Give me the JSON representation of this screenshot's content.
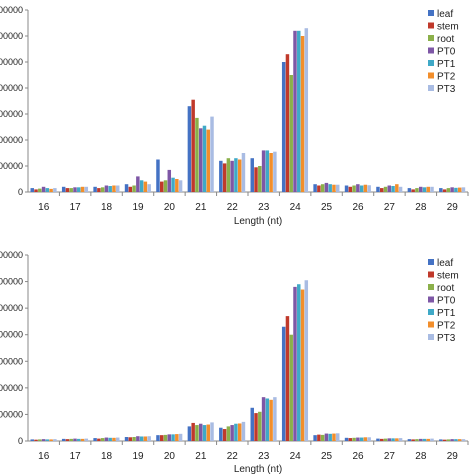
{
  "colors": [
    "#4472C4",
    "#C0392B",
    "#8BB04A",
    "#7E57A6",
    "#3FA9C7",
    "#F28E2B",
    "#A9BCE3"
  ],
  "chart_data": [
    {
      "type": "bar",
      "categories": [
        "16",
        "17",
        "18",
        "19",
        "20",
        "21",
        "22",
        "23",
        "24",
        "25",
        "26",
        "27",
        "28",
        "29"
      ],
      "xlabel": "Length (nt)",
      "ylabel": "",
      "ylim": [
        0,
        7000000
      ],
      "y_tick_labels": [
        "0",
        "00000",
        "00000",
        "00000",
        "00000",
        "00000",
        "00000",
        "00000"
      ],
      "legend_position": "top-right",
      "series": [
        {
          "name": "leaf",
          "values": [
            150000,
            200000,
            200000,
            300000,
            1250000,
            3300000,
            1200000,
            1300000,
            5000000,
            300000,
            250000,
            200000,
            150000,
            150000
          ]
        },
        {
          "name": "stem",
          "values": [
            100000,
            150000,
            150000,
            200000,
            400000,
            3550000,
            1100000,
            950000,
            5300000,
            250000,
            200000,
            150000,
            100000,
            100000
          ]
        },
        {
          "name": "root",
          "values": [
            130000,
            150000,
            180000,
            250000,
            450000,
            2850000,
            1300000,
            1000000,
            4500000,
            300000,
            250000,
            200000,
            150000,
            150000
          ]
        },
        {
          "name": "PT0",
          "values": [
            200000,
            180000,
            250000,
            600000,
            850000,
            2450000,
            1200000,
            1600000,
            6200000,
            350000,
            300000,
            250000,
            200000,
            180000
          ]
        },
        {
          "name": "PT1",
          "values": [
            150000,
            180000,
            230000,
            450000,
            550000,
            2550000,
            1300000,
            1600000,
            6200000,
            300000,
            250000,
            230000,
            180000,
            160000
          ]
        },
        {
          "name": "PT2",
          "values": [
            120000,
            200000,
            250000,
            400000,
            500000,
            2400000,
            1250000,
            1500000,
            6000000,
            280000,
            280000,
            300000,
            200000,
            170000
          ]
        },
        {
          "name": "PT3",
          "values": [
            150000,
            200000,
            250000,
            300000,
            450000,
            2900000,
            1500000,
            1550000,
            6300000,
            280000,
            260000,
            200000,
            200000,
            180000
          ]
        }
      ]
    },
    {
      "type": "bar",
      "categories": [
        "16",
        "17",
        "18",
        "19",
        "20",
        "21",
        "22",
        "23",
        "24",
        "25",
        "26",
        "27",
        "28",
        "29"
      ],
      "xlabel": "Length (nt)",
      "ylabel": "",
      "ylim": [
        0,
        7000000
      ],
      "y_tick_labels": [
        "0",
        "00000",
        "00000",
        "00000",
        "00000",
        "00000",
        "00000",
        "00000"
      ],
      "legend_position": "top-right",
      "series": [
        {
          "name": "leaf",
          "values": [
            60000,
            80000,
            110000,
            150000,
            220000,
            550000,
            500000,
            1250000,
            4300000,
            220000,
            120000,
            90000,
            70000,
            60000
          ]
        },
        {
          "name": "stem",
          "values": [
            50000,
            70000,
            90000,
            140000,
            220000,
            680000,
            450000,
            1050000,
            4700000,
            240000,
            110000,
            80000,
            60000,
            50000
          ]
        },
        {
          "name": "root",
          "values": [
            60000,
            80000,
            110000,
            150000,
            230000,
            600000,
            550000,
            1100000,
            4000000,
            230000,
            120000,
            90000,
            70000,
            60000
          ]
        },
        {
          "name": "PT0",
          "values": [
            70000,
            90000,
            130000,
            180000,
            250000,
            650000,
            600000,
            1650000,
            5800000,
            280000,
            130000,
            100000,
            80000,
            70000
          ]
        },
        {
          "name": "PT1",
          "values": [
            60000,
            80000,
            120000,
            170000,
            250000,
            600000,
            650000,
            1600000,
            5900000,
            270000,
            130000,
            100000,
            80000,
            70000
          ]
        },
        {
          "name": "PT2",
          "values": [
            60000,
            80000,
            120000,
            170000,
            260000,
            620000,
            660000,
            1550000,
            5700000,
            280000,
            140000,
            100000,
            80000,
            70000
          ]
        },
        {
          "name": "PT3",
          "values": [
            70000,
            90000,
            130000,
            180000,
            270000,
            700000,
            720000,
            1650000,
            6050000,
            290000,
            140000,
            110000,
            90000,
            70000
          ]
        }
      ]
    }
  ]
}
